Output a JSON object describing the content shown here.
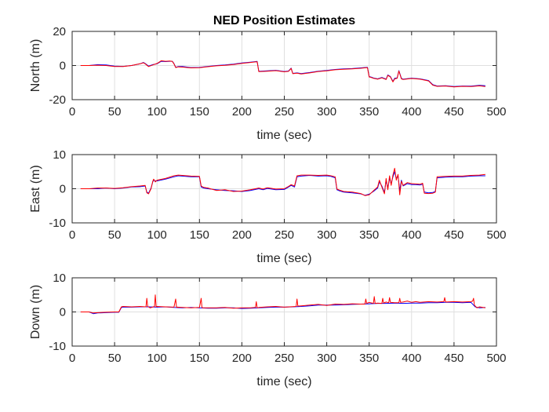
{
  "colors": {
    "series_blue": "#0000ff",
    "series_red": "#ff0000",
    "axis": "#262626",
    "grid": "#dfdfdf"
  },
  "chart_data": [
    {
      "type": "line",
      "title": "NED Position Estimates",
      "xlabel": "time (sec)",
      "ylabel": "North (m)",
      "xlim": [
        0,
        500
      ],
      "ylim": [
        -20,
        20
      ],
      "xticks": [
        0,
        50,
        100,
        150,
        200,
        250,
        300,
        350,
        400,
        450,
        500
      ],
      "yticks": [
        -20,
        0,
        20
      ],
      "grid": true,
      "series": [
        {
          "color": "#0000ff",
          "x": [
            10,
            20,
            30,
            40,
            50,
            60,
            70,
            80,
            84,
            86,
            90,
            95,
            100,
            105,
            110,
            115,
            118,
            120,
            122,
            125,
            130,
            140,
            150,
            160,
            170,
            180,
            190,
            200,
            210,
            216,
            218,
            220,
            230,
            240,
            250,
            255,
            258,
            260,
            265,
            270,
            280,
            290,
            300,
            310,
            320,
            330,
            340,
            348,
            350,
            352,
            355,
            360,
            365,
            370,
            372,
            375,
            378,
            380,
            383,
            385,
            388,
            390,
            400,
            410,
            420,
            425,
            430,
            440,
            450,
            460,
            470,
            480,
            487
          ],
          "y": [
            0,
            0,
            0.5,
            0.3,
            -0.3,
            -0.5,
            0,
            1,
            1.8,
            1.2,
            -0.3,
            0.5,
            1,
            2.5,
            2.3,
            2.5,
            2.5,
            1.2,
            -1,
            -0.6,
            -0.6,
            -1.2,
            -1.1,
            -0.5,
            0,
            0.3,
            0.8,
            1.5,
            2,
            2.3,
            2.4,
            -3.4,
            -3.1,
            -2.8,
            -3.5,
            -3.2,
            -1.5,
            -4.6,
            -4.3,
            -4.7,
            -4.1,
            -3.3,
            -2.9,
            -2.3,
            -2,
            -1.8,
            -1.4,
            -1,
            -6.5,
            -6.7,
            -7.3,
            -7.8,
            -7,
            -8,
            -5.5,
            -6.5,
            -9.3,
            -7.5,
            -7.2,
            -3,
            -7.5,
            -8,
            -7.4,
            -7.8,
            -8.8,
            -11.2,
            -12,
            -11.8,
            -12.3,
            -12,
            -12.1,
            -11.6,
            -11.8
          ]
        },
        {
          "color": "#ff0000",
          "x": [
            10,
            20,
            30,
            40,
            50,
            60,
            70,
            80,
            84,
            86,
            90,
            95,
            100,
            105,
            110,
            115,
            118,
            120,
            122,
            125,
            130,
            140,
            150,
            160,
            170,
            180,
            190,
            200,
            210,
            216,
            218,
            220,
            230,
            240,
            250,
            255,
            258,
            260,
            265,
            270,
            280,
            290,
            300,
            310,
            320,
            330,
            340,
            348,
            350,
            352,
            355,
            360,
            365,
            370,
            372,
            375,
            378,
            380,
            383,
            385,
            388,
            390,
            400,
            410,
            420,
            425,
            430,
            440,
            450,
            460,
            470,
            480,
            487
          ],
          "y": [
            0,
            0,
            0.2,
            0,
            -0.6,
            -0.6,
            0,
            1,
            1.6,
            1,
            -0.6,
            0.3,
            1.2,
            2.8,
            2.5,
            2.6,
            2.4,
            1,
            -1.2,
            -0.8,
            -0.9,
            -1.4,
            -1.3,
            -0.7,
            -0.2,
            0.1,
            0.6,
            1.3,
            1.8,
            2.1,
            2.2,
            -3.6,
            -3.3,
            -3,
            -3.7,
            -3.4,
            -1.7,
            -4.8,
            -4.5,
            -4.9,
            -4.3,
            -3.5,
            -3.1,
            -2.5,
            -2.2,
            -2,
            -1.6,
            -1.2,
            -6.7,
            -6.9,
            -7.5,
            -8,
            -7.2,
            -8.2,
            -5.8,
            -6.7,
            -9.6,
            -7.8,
            -7.5,
            -3.2,
            -7.8,
            -8.2,
            -7.6,
            -8,
            -9,
            -11.5,
            -12.2,
            -12,
            -12.5,
            -12.2,
            -12.3,
            -11.9,
            -12.3
          ]
        }
      ]
    },
    {
      "type": "line",
      "title": "",
      "xlabel": "time (sec)",
      "ylabel": "East (m)",
      "xlim": [
        0,
        500
      ],
      "ylim": [
        -10,
        10
      ],
      "xticks": [
        0,
        50,
        100,
        150,
        200,
        250,
        300,
        350,
        400,
        450,
        500
      ],
      "yticks": [
        -10,
        0,
        10
      ],
      "grid": true,
      "series": [
        {
          "color": "#0000ff",
          "x": [
            10,
            20,
            30,
            40,
            50,
            60,
            70,
            80,
            86,
            88,
            90,
            93,
            95,
            96,
            98,
            100,
            110,
            120,
            125,
            140,
            150,
            152,
            155,
            160,
            170,
            180,
            190,
            200,
            210,
            220,
            225,
            230,
            240,
            250,
            255,
            258,
            262,
            265,
            270,
            280,
            290,
            300,
            305,
            310,
            312,
            315,
            320,
            330,
            340,
            345,
            350,
            355,
            360,
            362,
            365,
            368,
            370,
            372,
            374,
            376,
            378,
            380,
            382,
            384,
            386,
            388,
            390,
            395,
            400,
            405,
            410,
            413,
            415,
            420,
            425,
            428,
            430,
            440,
            450,
            460,
            470,
            480,
            487
          ],
          "y": [
            0,
            0,
            0,
            0.2,
            0,
            0.2,
            0.5,
            0.6,
            0.8,
            -1,
            -1.3,
            0.2,
            2,
            2.5,
            2.3,
            2.3,
            2.8,
            3.5,
            3.8,
            3.5,
            3.5,
            0.5,
            0.2,
            0,
            -0.3,
            -0.5,
            -0.6,
            -0.8,
            -0.5,
            0,
            -0.3,
            0.1,
            -0.3,
            -0.2,
            0.5,
            1,
            0.5,
            3.5,
            3.7,
            3.9,
            3.7,
            3.8,
            3.6,
            3.2,
            -0.3,
            -0.6,
            -1,
            -1.2,
            -1.5,
            -1.9,
            -1.6,
            -0.8,
            0.2,
            2,
            0.8,
            -1.1,
            2.5,
            0.1,
            3,
            1.5,
            3.5,
            5,
            3,
            3.8,
            -0.5,
            2.5,
            0.8,
            1.5,
            1.2,
            1.2,
            1.1,
            1.3,
            -1,
            -1.2,
            -1.1,
            -0.8,
            3.2,
            3.4,
            3.5,
            3.5,
            3.7,
            3.8,
            3.8
          ]
        },
        {
          "color": "#ff0000",
          "x": [
            10,
            20,
            30,
            40,
            50,
            60,
            70,
            80,
            86,
            88,
            90,
            93,
            95,
            96,
            98,
            100,
            110,
            120,
            125,
            140,
            150,
            152,
            155,
            160,
            170,
            180,
            190,
            200,
            210,
            220,
            225,
            230,
            240,
            250,
            255,
            258,
            262,
            265,
            270,
            280,
            290,
            300,
            305,
            310,
            312,
            315,
            320,
            330,
            340,
            345,
            350,
            355,
            360,
            362,
            365,
            368,
            370,
            372,
            374,
            376,
            378,
            380,
            382,
            384,
            386,
            388,
            390,
            395,
            400,
            405,
            410,
            413,
            415,
            420,
            425,
            428,
            430,
            440,
            450,
            460,
            470,
            480,
            487
          ],
          "y": [
            0,
            0,
            0.2,
            0.2,
            0.1,
            0.3,
            0.6,
            0.8,
            1,
            -1.2,
            -1.5,
            0,
            2.2,
            2.8,
            2,
            2.5,
            3,
            3.8,
            4,
            3.7,
            3.6,
            0.8,
            0.4,
            0.2,
            -0.5,
            -0.3,
            -0.8,
            -0.7,
            -0.3,
            0.2,
            -0.1,
            0.3,
            -0.1,
            0,
            0.7,
            1.2,
            0.8,
            3.8,
            4,
            4,
            3.9,
            4,
            3.8,
            3.5,
            -0.1,
            -0.4,
            -0.8,
            -1,
            -1.4,
            -2,
            -1.8,
            -0.6,
            0.5,
            2.5,
            0.5,
            -1.5,
            3,
            -0.3,
            3.8,
            1,
            4,
            6,
            2.5,
            4.2,
            -1.8,
            2.2,
            1,
            1.8,
            1.5,
            1.4,
            1.3,
            1.6,
            -1.3,
            -1.4,
            -1.3,
            -1,
            3.5,
            3.6,
            3.7,
            3.7,
            3.9,
            4,
            4.2
          ]
        }
      ]
    },
    {
      "type": "line",
      "title": "",
      "xlabel": "time (sec)",
      "ylabel": "Down (m)",
      "xlim": [
        0,
        500
      ],
      "ylim": [
        -10,
        10
      ],
      "xticks": [
        0,
        50,
        100,
        150,
        200,
        250,
        300,
        350,
        400,
        450,
        500
      ],
      "yticks": [
        -10,
        0,
        10
      ],
      "grid": true,
      "series": [
        {
          "color": "#0000ff",
          "x": [
            10,
            20,
            25,
            30,
            40,
            50,
            55,
            58,
            60,
            70,
            80,
            90,
            100,
            110,
            120,
            130,
            140,
            150,
            160,
            170,
            180,
            190,
            200,
            210,
            220,
            230,
            240,
            250,
            260,
            270,
            280,
            290,
            300,
            310,
            320,
            330,
            340,
            350,
            360,
            370,
            380,
            390,
            400,
            410,
            420,
            430,
            440,
            450,
            460,
            470,
            475,
            480,
            487
          ],
          "y": [
            0,
            0,
            -0.5,
            -0.3,
            -0.2,
            -0.1,
            -0.1,
            1.3,
            1.4,
            1.4,
            1.5,
            1.5,
            1.4,
            1.5,
            1.3,
            1.2,
            1.3,
            1.2,
            1.1,
            1.1,
            1.2,
            1.2,
            1.0,
            1.1,
            1.2,
            1.3,
            1.4,
            1.4,
            1.5,
            1.6,
            1.8,
            2.0,
            2.0,
            2.0,
            2.1,
            2.2,
            2.3,
            2.4,
            2.5,
            2.5,
            2.6,
            2.5,
            2.6,
            2.6,
            2.7,
            2.7,
            2.8,
            2.8,
            2.7,
            2.8,
            1.5,
            1.2,
            1.3
          ]
        },
        {
          "color": "#ff0000",
          "x": [
            10,
            20,
            25,
            30,
            40,
            50,
            55,
            58,
            60,
            70,
            80,
            87,
            88,
            89,
            92,
            97,
            98,
            99,
            100,
            110,
            120,
            122,
            123,
            124,
            130,
            140,
            150,
            152,
            153,
            154,
            160,
            170,
            180,
            190,
            200,
            210,
            216,
            217,
            218,
            220,
            230,
            240,
            250,
            264,
            265,
            266,
            270,
            280,
            290,
            300,
            310,
            320,
            330,
            340,
            345,
            346,
            347,
            350,
            355,
            356,
            357,
            360,
            365,
            366,
            367,
            370,
            373,
            374,
            375,
            380,
            385,
            386,
            387,
            390,
            395,
            400,
            405,
            410,
            420,
            430,
            438,
            439,
            440,
            450,
            460,
            470,
            472,
            473,
            474,
            477,
            480,
            487
          ],
          "y": [
            0,
            0,
            -0.3,
            -0.2,
            -0.1,
            0,
            0,
            1.5,
            1.6,
            1.5,
            1.6,
            1.5,
            4.0,
            1.6,
            1.2,
            1.6,
            5.0,
            1.5,
            1.6,
            1.5,
            1.4,
            3.8,
            1.3,
            1.4,
            1.3,
            1.2,
            1.3,
            4.0,
            1.3,
            1.2,
            1.2,
            1.2,
            1.3,
            1.1,
            1.2,
            1.2,
            1.3,
            3.0,
            1.2,
            1.3,
            1.5,
            1.6,
            1.4,
            1.6,
            3.8,
            1.7,
            1.8,
            2.0,
            2.2,
            1.9,
            2.3,
            2.2,
            2.4,
            2.3,
            2.3,
            3.8,
            2.5,
            2.8,
            2.5,
            4.5,
            2.5,
            2.6,
            2.5,
            4.0,
            2.6,
            2.9,
            2.7,
            4.2,
            2.8,
            2.7,
            2.7,
            4.0,
            2.8,
            2.9,
            3.2,
            2.8,
            3.0,
            2.8,
            3.0,
            2.9,
            3.0,
            4.2,
            2.9,
            3.0,
            2.9,
            3.0,
            3.2,
            4.0,
            2.0,
            1.2,
            1.5,
            1.2
          ]
        }
      ]
    }
  ]
}
